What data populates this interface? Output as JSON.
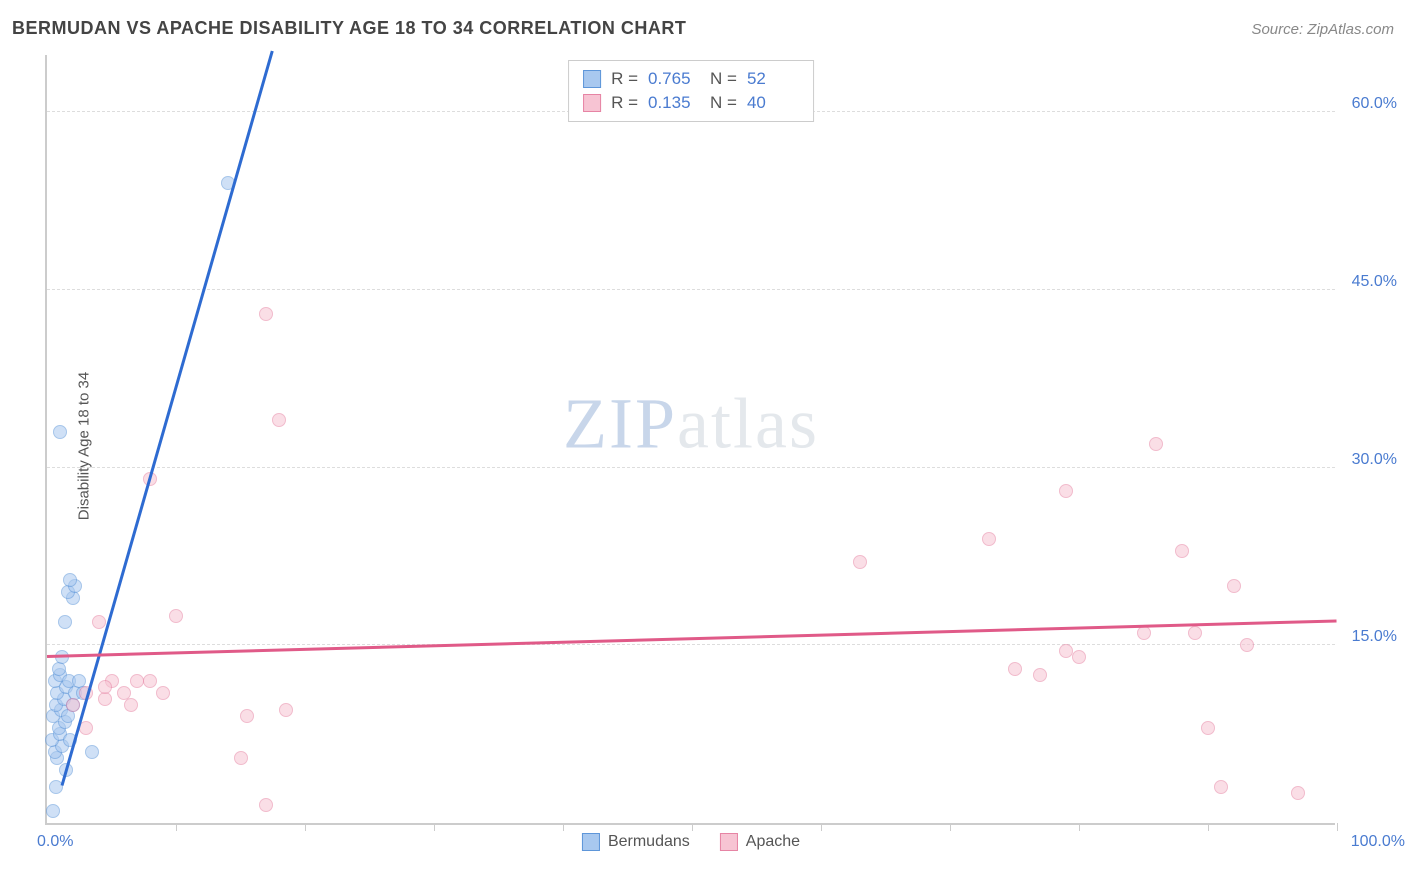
{
  "header": {
    "title": "BERMUDAN VS APACHE DISABILITY AGE 18 TO 34 CORRELATION CHART",
    "source": "Source: ZipAtlas.com"
  },
  "chart": {
    "type": "scatter",
    "ylabel": "Disability Age 18 to 34",
    "xlim": [
      0,
      100
    ],
    "ylim": [
      0,
      65
    ],
    "x_tick_min_label": "0.0%",
    "x_tick_max_label": "100.0%",
    "x_minor_ticks": [
      10,
      20,
      30,
      40,
      50,
      60,
      70,
      80,
      90,
      100
    ],
    "y_gridlines": [
      {
        "value": 15,
        "label": "15.0%"
      },
      {
        "value": 30,
        "label": "30.0%"
      },
      {
        "value": 45,
        "label": "45.0%"
      },
      {
        "value": 60,
        "label": "60.0%"
      }
    ],
    "background_color": "#ffffff",
    "grid_color": "#dddddd",
    "axis_color": "#cccccc",
    "tick_label_color": "#4a7bd0",
    "label_color": "#555555",
    "point_radius": 7,
    "point_opacity": 0.55,
    "series": [
      {
        "name": "Bermudans",
        "fill_color": "#a8c8ef",
        "stroke_color": "#5e96d9",
        "r_value": "0.765",
        "n_value": "52",
        "trendline": {
          "x1": 1.2,
          "y1": 3,
          "x2": 17.5,
          "y2": 65,
          "color": "#2e6bd1",
          "width": 3
        },
        "points": [
          {
            "x": 0.5,
            "y": 1.0
          },
          {
            "x": 0.7,
            "y": 3.0
          },
          {
            "x": 1.5,
            "y": 4.5
          },
          {
            "x": 0.8,
            "y": 5.5
          },
          {
            "x": 0.6,
            "y": 6.0
          },
          {
            "x": 1.2,
            "y": 6.5
          },
          {
            "x": 0.4,
            "y": 7.0
          },
          {
            "x": 1.0,
            "y": 7.5
          },
          {
            "x": 1.8,
            "y": 7.0
          },
          {
            "x": 0.9,
            "y": 8.0
          },
          {
            "x": 1.4,
            "y": 8.5
          },
          {
            "x": 0.5,
            "y": 9.0
          },
          {
            "x": 1.1,
            "y": 9.5
          },
          {
            "x": 1.6,
            "y": 9.0
          },
          {
            "x": 0.7,
            "y": 10.0
          },
          {
            "x": 1.3,
            "y": 10.5
          },
          {
            "x": 2.0,
            "y": 10.0
          },
          {
            "x": 0.8,
            "y": 11.0
          },
          {
            "x": 1.5,
            "y": 11.5
          },
          {
            "x": 2.2,
            "y": 11.0
          },
          {
            "x": 0.6,
            "y": 12.0
          },
          {
            "x": 1.0,
            "y": 12.5
          },
          {
            "x": 1.7,
            "y": 12.0
          },
          {
            "x": 2.5,
            "y": 12.0
          },
          {
            "x": 0.9,
            "y": 13.0
          },
          {
            "x": 3.5,
            "y": 6.0
          },
          {
            "x": 1.2,
            "y": 14.0
          },
          {
            "x": 2.8,
            "y": 11.0
          },
          {
            "x": 1.4,
            "y": 17.0
          },
          {
            "x": 2.0,
            "y": 19.0
          },
          {
            "x": 1.6,
            "y": 19.5
          },
          {
            "x": 2.2,
            "y": 20.0
          },
          {
            "x": 1.8,
            "y": 20.5
          },
          {
            "x": 1.0,
            "y": 33.0
          },
          {
            "x": 14.0,
            "y": 54.0
          }
        ]
      },
      {
        "name": "Apache",
        "fill_color": "#f7c4d3",
        "stroke_color": "#e684a4",
        "r_value": "0.135",
        "n_value": "40",
        "trendline": {
          "x1": 0,
          "y1": 14.0,
          "x2": 100,
          "y2": 17.0,
          "color": "#e05a88",
          "width": 2.5
        },
        "points": [
          {
            "x": 2.0,
            "y": 10.0
          },
          {
            "x": 3.0,
            "y": 11.0
          },
          {
            "x": 4.5,
            "y": 10.5
          },
          {
            "x": 5.0,
            "y": 12.0
          },
          {
            "x": 6.0,
            "y": 11.0
          },
          {
            "x": 7.0,
            "y": 12.0
          },
          {
            "x": 4.0,
            "y": 17.0
          },
          {
            "x": 8.0,
            "y": 12.0
          },
          {
            "x": 9.0,
            "y": 11.0
          },
          {
            "x": 10.0,
            "y": 17.5
          },
          {
            "x": 3.0,
            "y": 8.0
          },
          {
            "x": 8.0,
            "y": 29.0
          },
          {
            "x": 15.0,
            "y": 5.5
          },
          {
            "x": 15.5,
            "y": 9.0
          },
          {
            "x": 17.0,
            "y": 1.5
          },
          {
            "x": 17.0,
            "y": 43.0
          },
          {
            "x": 18.5,
            "y": 9.5
          },
          {
            "x": 18.0,
            "y": 34.0
          },
          {
            "x": 4.5,
            "y": 11.5
          },
          {
            "x": 6.5,
            "y": 10.0
          },
          {
            "x": 63.0,
            "y": 22.0
          },
          {
            "x": 73.0,
            "y": 24.0
          },
          {
            "x": 75.0,
            "y": 13.0
          },
          {
            "x": 77.0,
            "y": 12.5
          },
          {
            "x": 79.0,
            "y": 28.0
          },
          {
            "x": 79.0,
            "y": 14.5
          },
          {
            "x": 80.0,
            "y": 14.0
          },
          {
            "x": 85.0,
            "y": 16.0
          },
          {
            "x": 86.0,
            "y": 32.0
          },
          {
            "x": 88.0,
            "y": 23.0
          },
          {
            "x": 89.0,
            "y": 16.0
          },
          {
            "x": 90.0,
            "y": 8.0
          },
          {
            "x": 92.0,
            "y": 20.0
          },
          {
            "x": 93.0,
            "y": 15.0
          },
          {
            "x": 91.0,
            "y": 3.0
          },
          {
            "x": 97.0,
            "y": 2.5
          }
        ]
      }
    ],
    "watermark": {
      "part1": "ZIP",
      "part2": "atlas"
    }
  },
  "legends": {
    "stats_label_r": "R =",
    "stats_label_n": "N ="
  }
}
